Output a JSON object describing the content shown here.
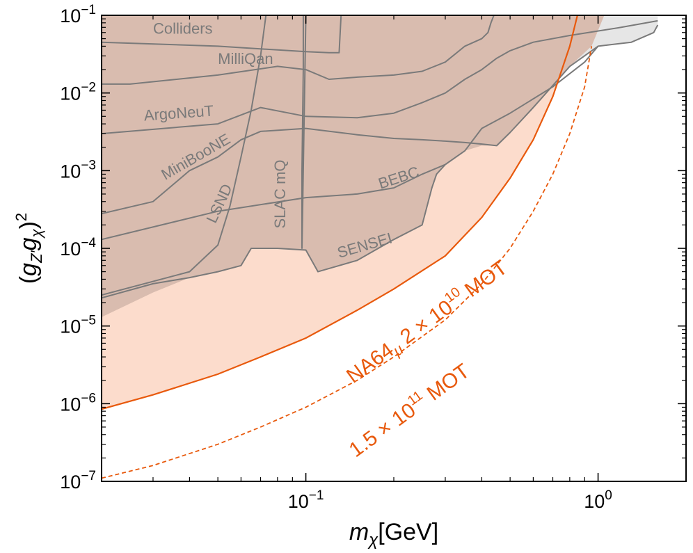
{
  "chart_data": {
    "type": "line",
    "title": "",
    "xlabel": "m_χ [GeV]",
    "ylabel": "(g_Z' g_χ)^2",
    "xscale": "log",
    "yscale": "log",
    "xlim": [
      0.02,
      2.0
    ],
    "ylim": [
      1e-07,
      0.1
    ],
    "grid": false,
    "x_ticks": [
      {
        "value": 0.1,
        "base": "10",
        "exp": "−1"
      },
      {
        "value": 1.0,
        "base": "10",
        "exp": "0"
      }
    ],
    "y_ticks": [
      {
        "value": 1e-07,
        "base": "10",
        "exp": "−7"
      },
      {
        "value": 1e-06,
        "base": "10",
        "exp": "−6"
      },
      {
        "value": 1e-05,
        "base": "10",
        "exp": "−5"
      },
      {
        "value": 0.0001,
        "base": "10",
        "exp": "−4"
      },
      {
        "value": 0.001,
        "base": "10",
        "exp": "−3"
      },
      {
        "value": 0.01,
        "base": "10",
        "exp": "−2"
      },
      {
        "value": 0.1,
        "base": "10",
        "exp": "−1"
      }
    ],
    "colors": {
      "excluded_fill": "#d9bcaf",
      "na64_fill": "#fcdccc",
      "gray_fill": "#e6e6e6",
      "existing_line": "#7a7a7a",
      "na64_line": "#e8590c",
      "label_text": "#7a7a7a"
    },
    "series": [
      {
        "name": "Colliders",
        "style": "existing",
        "x": [
          0.02,
          0.05,
          0.1,
          0.12,
          0.13,
          0.132
        ],
        "y": [
          0.045,
          0.04,
          0.034,
          0.033,
          0.033,
          0.1
        ]
      },
      {
        "name": "MilliQan",
        "style": "existing",
        "x": [
          0.02,
          0.025,
          0.05,
          0.08,
          0.1,
          0.12,
          0.15,
          0.2,
          0.25,
          0.3,
          0.35,
          0.4,
          0.42,
          0.43,
          0.44
        ],
        "y": [
          0.013,
          0.013,
          0.017,
          0.022,
          0.02,
          0.015,
          0.016,
          0.017,
          0.019,
          0.025,
          0.04,
          0.05,
          0.06,
          0.08,
          0.1
        ]
      },
      {
        "name": "ArgoNeuT",
        "style": "existing",
        "x": [
          0.02,
          0.05,
          0.07,
          0.1,
          0.15,
          0.2,
          0.25,
          0.3,
          0.35,
          0.4,
          0.45,
          0.5,
          0.6,
          0.8,
          1.2,
          1.6
        ],
        "y": [
          0.003,
          0.004,
          0.0065,
          0.005,
          0.0048,
          0.0055,
          0.0075,
          0.01,
          0.015,
          0.02,
          0.028,
          0.035,
          0.045,
          0.055,
          0.07,
          0.085
        ]
      },
      {
        "name": "MiniBooNE",
        "style": "existing",
        "x": [
          0.02,
          0.03,
          0.04,
          0.05,
          0.06,
          0.07,
          0.1,
          0.15,
          0.2,
          0.25,
          0.3,
          0.35,
          0.4,
          0.45,
          0.5,
          0.6,
          0.8,
          1.0,
          1.3,
          1.55,
          1.6
        ],
        "y": [
          0.00028,
          0.0004,
          0.001,
          0.0015,
          0.0025,
          0.0032,
          0.0035,
          0.0029,
          0.0026,
          0.0025,
          0.0024,
          0.0023,
          0.0022,
          0.0021,
          0.0031,
          0.0065,
          0.022,
          0.04,
          0.045,
          0.06,
          0.075
        ]
      },
      {
        "name": "LSND",
        "style": "existing",
        "x": [
          0.02,
          0.04,
          0.05,
          0.055,
          0.06,
          0.065,
          0.07,
          0.073
        ],
        "y": [
          2.5e-05,
          5e-05,
          0.00011,
          0.00035,
          0.0015,
          0.006,
          0.03,
          0.1
        ]
      },
      {
        "name": "SLAC mQ",
        "style": "existing",
        "x": [
          0.098,
          0.098,
          0.097,
          0.097,
          0.1
        ],
        "y": [
          0.1,
          0.02,
          0.001,
          0.0001,
          0.1
        ]
      },
      {
        "name": "BEBC",
        "style": "existing",
        "x": [
          0.02,
          0.05,
          0.1,
          0.15,
          0.2,
          0.25,
          0.3,
          0.35,
          0.4,
          0.5,
          0.7,
          0.9,
          1.0
        ],
        "y": [
          0.00013,
          0.0003,
          0.00045,
          0.0005,
          0.0006,
          0.0009,
          0.0012,
          0.0018,
          0.0035,
          0.0055,
          0.012,
          0.025,
          0.04
        ]
      },
      {
        "name": "SENSEI",
        "style": "existing",
        "x": [
          0.02,
          0.03,
          0.04,
          0.05,
          0.06,
          0.065,
          0.08,
          0.1,
          0.11,
          0.15,
          0.2,
          0.25,
          0.27,
          0.28,
          0.3
        ],
        "y": [
          2.3e-05,
          3.5e-05,
          4.2e-05,
          5e-05,
          6e-05,
          0.0001,
          0.0001,
          9.5e-05,
          5e-05,
          7e-05,
          0.00013,
          0.0002,
          0.0006,
          0.0009,
          0.0012
        ]
      },
      {
        "name": "NA64μ 2×10^10 MOT",
        "style": "na64_solid",
        "x": [
          0.02,
          0.03,
          0.05,
          0.07,
          0.1,
          0.15,
          0.2,
          0.3,
          0.4,
          0.5,
          0.6,
          0.7,
          0.8,
          0.85
        ],
        "y": [
          8.5e-07,
          1.3e-06,
          2.4e-06,
          4e-06,
          7e-06,
          1.6e-05,
          3e-05,
          8e-05,
          0.00025,
          0.0008,
          0.0025,
          0.009,
          0.04,
          0.1
        ]
      },
      {
        "name": "1.5×10^11 MOT",
        "style": "na64_dashed",
        "x": [
          0.02,
          0.03,
          0.05,
          0.07,
          0.1,
          0.15,
          0.2,
          0.3,
          0.4,
          0.5,
          0.6,
          0.7,
          0.8,
          0.9,
          0.95
        ],
        "y": [
          1.1e-07,
          1.6e-07,
          3e-07,
          5e-07,
          9e-07,
          2e-06,
          4e-06,
          1.2e-05,
          3.5e-05,
          0.0001,
          0.0003,
          0.0009,
          0.003,
          0.012,
          0.04
        ]
      }
    ],
    "annotations": [
      {
        "text": "Colliders",
        "x": 0.03,
        "y": 0.058,
        "angle": 0
      },
      {
        "text": "MilliQan",
        "x": 0.05,
        "y": 0.0235,
        "angle": 0
      },
      {
        "text": "ArgoNeuT",
        "x": 0.028,
        "y": 0.0044,
        "angle": -4
      },
      {
        "text": "MiniBooNE",
        "x": 0.033,
        "y": 0.00075,
        "angle": -30
      },
      {
        "text": "LSND",
        "x": 0.049,
        "y": 0.000205,
        "angle": -65
      },
      {
        "text": "SLAC mQ",
        "x": 0.085,
        "y": 0.00018,
        "angle": -90
      },
      {
        "text": "BEBC",
        "x": 0.18,
        "y": 0.00058,
        "angle": -18
      },
      {
        "text": "SENSEI",
        "x": 0.13,
        "y": 7.5e-05,
        "angle": -16
      }
    ],
    "na64_labels": [
      {
        "text": "NA64μ 2 × 10^10 MOT",
        "prefix": "NA64",
        "mu": "μ",
        "mid": " 2 × 10",
        "exp": "10",
        "suffix": " MOT",
        "x": 0.145,
        "y": 1.8e-06,
        "angle": -36
      },
      {
        "text": "1.5 × 10^11 MOT",
        "prefix": "1.5 × 10",
        "exp": "11",
        "suffix": " MOT",
        "x": 0.148,
        "y": 2e-07,
        "angle": -36
      }
    ]
  }
}
